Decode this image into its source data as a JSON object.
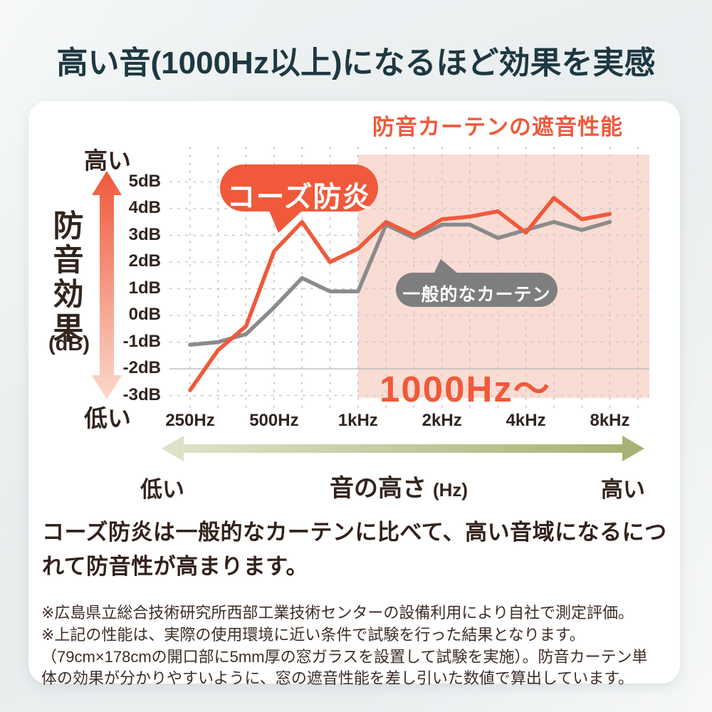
{
  "header": {
    "title": "高い音(1000Hz以上)になるほど効果を実感"
  },
  "chart": {
    "title": "防音カーテンの遮音性能",
    "y_axis": {
      "high": "高い",
      "low": "低い",
      "label_chars": [
        "防",
        "音",
        "効",
        "果"
      ],
      "unit": "(dB)",
      "ticks": [
        "5dB",
        "4dB",
        "3dB",
        "2dB",
        "1dB",
        "0dB",
        "-1dB",
        "-2dB",
        "-3dB"
      ]
    },
    "x_axis": {
      "ticks": [
        "250Hz",
        "500Hz",
        "1kHz",
        "2kHz",
        "4kHz",
        "8kHz"
      ]
    },
    "bubbles": {
      "ours": "コーズ防炎",
      "generic": "一般的なカーテン"
    },
    "region_label": "1000Hz〜",
    "freq_axis": {
      "low": "低い",
      "label": "音の高さ",
      "unit": "(Hz)",
      "high": "高い"
    }
  },
  "chart_data": {
    "type": "line",
    "title": "防音カーテンの遮音性能",
    "x": [
      250,
      315,
      400,
      500,
      630,
      800,
      1000,
      1250,
      1600,
      2000,
      2500,
      3150,
      4000,
      5000,
      6300,
      8000
    ],
    "x_scale": "log_one_third_octave",
    "x_tick_values": [
      250,
      500,
      1000,
      2000,
      4000,
      8000
    ],
    "x_tick_labels": [
      "250Hz",
      "500Hz",
      "1kHz",
      "2kHz",
      "4kHz",
      "8kHz"
    ],
    "ylabel": "防音効果 (dB)",
    "y_ticks": [
      5,
      4,
      3,
      2,
      1,
      0,
      -1,
      -2,
      -3
    ],
    "ylim": [
      -3.5,
      5.5
    ],
    "grid": true,
    "legend": "on-chart speech bubbles",
    "series": [
      {
        "name": "コーズ防炎",
        "color": "#F0593B",
        "values": [
          -2.8,
          -1.3,
          -0.4,
          2.4,
          3.5,
          2.0,
          2.5,
          3.5,
          3.0,
          3.6,
          3.7,
          3.9,
          3.1,
          4.4,
          3.6,
          3.8
        ]
      },
      {
        "name": "一般的なカーテン",
        "color": "#8B8B8B",
        "values": [
          -1.1,
          -1.0,
          -0.7,
          0.3,
          1.4,
          0.9,
          0.9,
          3.4,
          2.9,
          3.4,
          3.4,
          2.9,
          3.2,
          3.5,
          3.2,
          3.5
        ]
      }
    ],
    "highlight_region": {
      "from_hz": 1000,
      "label": "1000Hz〜",
      "color": "#F9DCD4"
    }
  },
  "statement": {
    "lines": [
      "コーズ防炎は一般的なカーテンに比べて、高い音域になるにつ",
      "れて防音性が高まります。"
    ]
  },
  "notes": {
    "lines": [
      "※広島県立総合技術研究所西部工業技術センターの設備利用により自社で測定評価。",
      "※上記の性能は、実際の使用環境に近い条件で試験を行った結果となります。",
      "（79cm×178cmの開口部に5mm厚の窓ガラスを設置して試験を実施）。防音カーテン単",
      "体の効果が分かりやすいように、窓の遮音性能を差し引いた数値で算出しています。"
    ]
  },
  "colors": {
    "accent_orange": "#F0593B",
    "line_gray": "#8B8B8B",
    "bubble_gray": "#7E7E7E",
    "highlight_pink": "#F9DCD4",
    "header_text": "#1E3842",
    "body_text": "#33211B",
    "note_text": "#3E2D25",
    "grid_gray": "#CBCBCB",
    "green_arrow_from": "#DFE4CA",
    "green_arrow_to": "#A6B072",
    "red_arrow_from": "#EF5839",
    "red_arrow_to": "#FBD9CC",
    "card_bg": "#FFFFFF",
    "page_bg": "#E8ECED"
  }
}
